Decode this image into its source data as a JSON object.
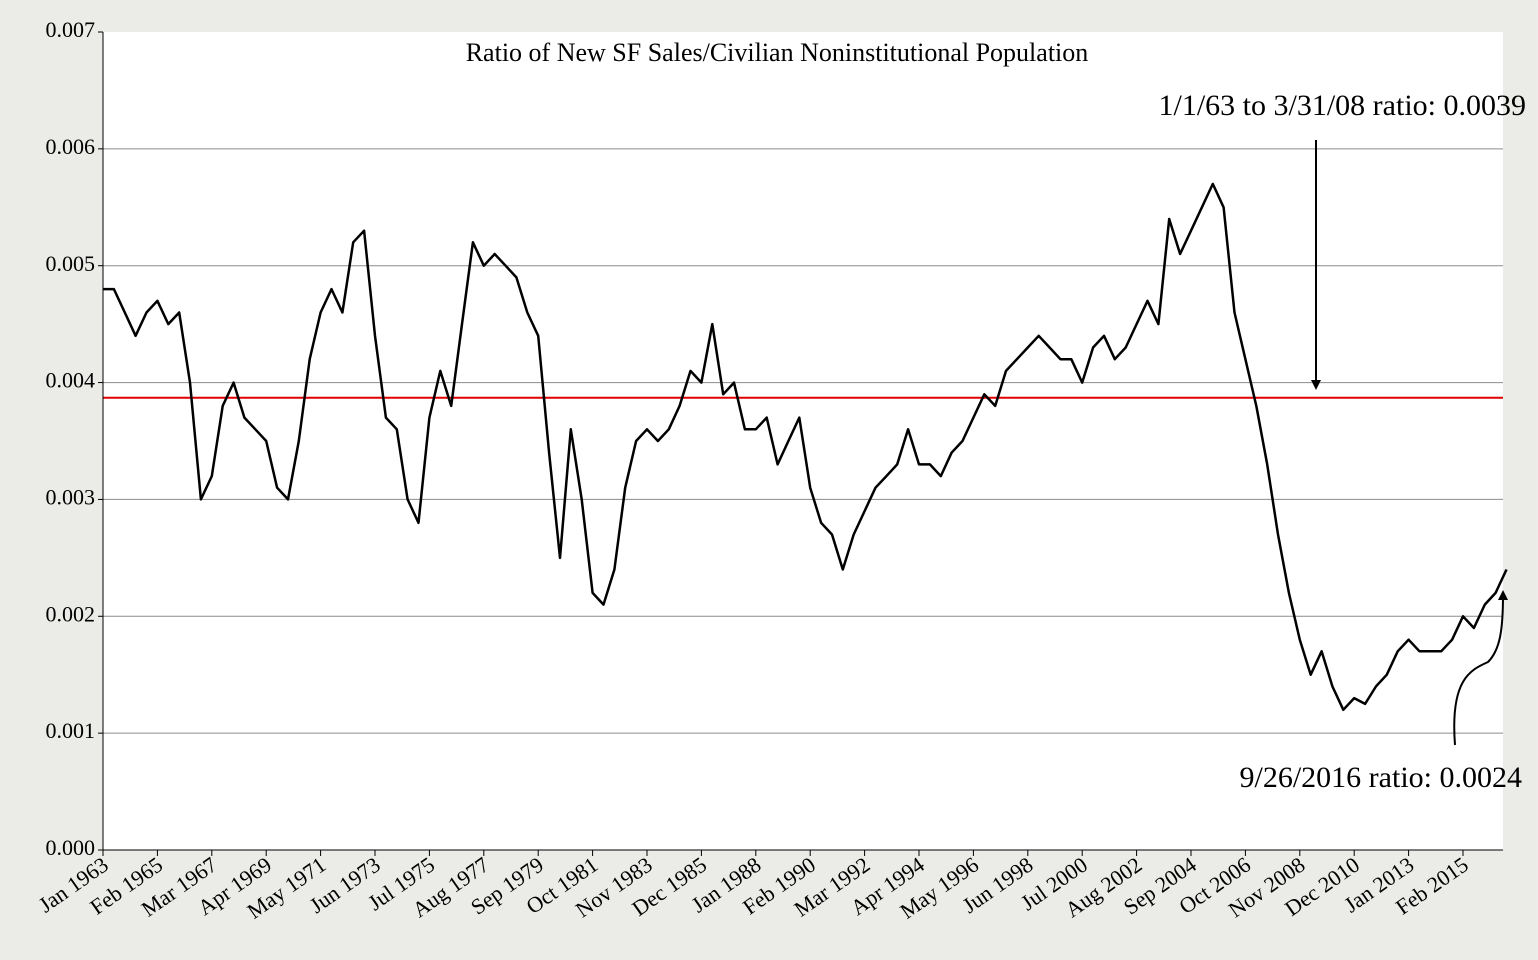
{
  "chart_data": {
    "type": "line",
    "title": "Ratio of New SF Sales/Civilian Noninstitutional Population",
    "annotations": [
      "1/1/63 to 3/31/08 ratio: 0.0039",
      "9/26/2016 ratio: 0.0024"
    ],
    "categories": [
      "Jan 1963",
      null,
      null,
      null,
      null,
      "Feb 1965",
      null,
      null,
      null,
      null,
      "Mar 1967",
      null,
      null,
      null,
      null,
      "Apr 1969",
      null,
      null,
      null,
      null,
      "May 1971",
      null,
      null,
      null,
      null,
      "Jun 1973",
      null,
      null,
      null,
      null,
      "Jul 1975",
      null,
      null,
      null,
      null,
      "Aug 1977",
      null,
      null,
      null,
      null,
      "Sep 1979",
      null,
      null,
      null,
      null,
      "Oct 1981",
      null,
      null,
      null,
      null,
      "Nov 1983",
      null,
      null,
      null,
      null,
      "Dec 1985",
      null,
      null,
      null,
      null,
      "Jan 1988",
      null,
      null,
      null,
      null,
      "Feb 1990",
      null,
      null,
      null,
      null,
      "Mar 1992",
      null,
      null,
      null,
      null,
      "Apr 1994",
      null,
      null,
      null,
      null,
      "May 1996",
      null,
      null,
      null,
      null,
      "Jun 1998",
      null,
      null,
      null,
      null,
      "Jul 2000",
      null,
      null,
      null,
      null,
      "Aug 2002",
      null,
      null,
      null,
      null,
      "Sep 2004",
      null,
      null,
      null,
      null,
      "Oct 2006",
      null,
      null,
      null,
      null,
      "Nov 2008",
      null,
      null,
      null,
      null,
      "Dec 2010",
      null,
      null,
      null,
      null,
      "Jan 2013",
      null,
      null,
      null,
      null,
      "Feb 2015",
      null,
      null,
      null,
      null
    ],
    "values": [
      0.0048,
      0.0048,
      0.0046,
      0.0044,
      0.0046,
      0.0047,
      0.0045,
      0.0046,
      0.004,
      0.003,
      0.0032,
      0.0038,
      0.004,
      0.0037,
      0.0036,
      0.0035,
      0.0031,
      0.003,
      0.0035,
      0.0042,
      0.0046,
      0.0048,
      0.0046,
      0.0052,
      0.0053,
      0.0044,
      0.0037,
      0.0036,
      0.003,
      0.0028,
      0.0037,
      0.0041,
      0.0038,
      0.0045,
      0.0052,
      0.005,
      0.0051,
      0.005,
      0.0049,
      0.0046,
      0.0044,
      0.0034,
      0.0025,
      0.0036,
      0.003,
      0.0022,
      0.0021,
      0.0024,
      0.0031,
      0.0035,
      0.0036,
      0.0035,
      0.0036,
      0.0038,
      0.0041,
      0.004,
      0.0045,
      0.0039,
      0.004,
      0.0036,
      0.0036,
      0.0037,
      0.0033,
      0.0035,
      0.0037,
      0.0031,
      0.0028,
      0.0027,
      0.0024,
      0.0027,
      0.0029,
      0.0031,
      0.0032,
      0.0033,
      0.0036,
      0.0033,
      0.0033,
      0.0032,
      0.0034,
      0.0035,
      0.0037,
      0.0039,
      0.0038,
      0.0041,
      0.0042,
      0.0043,
      0.0044,
      0.0043,
      0.0042,
      0.0042,
      0.004,
      0.0043,
      0.0044,
      0.0042,
      0.0043,
      0.0045,
      0.0047,
      0.0045,
      0.0054,
      0.0051,
      0.0053,
      0.0055,
      0.0057,
      0.0055,
      0.0046,
      0.0042,
      0.0038,
      0.0033,
      0.0027,
      0.0022,
      0.0018,
      0.0015,
      0.0017,
      0.0014,
      0.0012,
      0.0013,
      0.00125,
      0.0014,
      0.0015,
      0.0017,
      0.0018,
      0.0017,
      0.0017,
      0.0017,
      0.0018,
      0.002,
      0.0019,
      0.0021,
      0.0022,
      0.0024
    ],
    "color": "#000000",
    "reference_line": 0.00387,
    "reference_color": "#e00000",
    "ylim": [
      0,
      0.007
    ],
    "yticks": [
      {
        "value": 0,
        "label": "0.000"
      },
      {
        "value": 0.001,
        "label": "0.001"
      },
      {
        "value": 0.002,
        "label": "0.002"
      },
      {
        "value": 0.003,
        "label": "0.003"
      },
      {
        "value": 0.004,
        "label": "0.004"
      },
      {
        "value": 0.005,
        "label": "0.005"
      },
      {
        "value": 0.006,
        "label": "0.006"
      },
      {
        "value": 0.007,
        "label": "0.007"
      }
    ],
    "grid": true
  }
}
